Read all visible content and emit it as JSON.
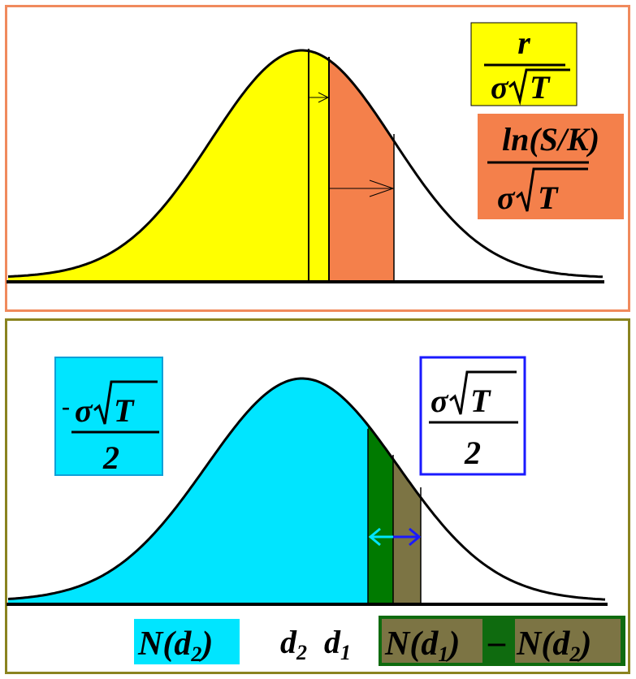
{
  "colors": {
    "top_border": "#f08a5d",
    "bottom_border": "#8a8420",
    "yellow_area": "#ffff00",
    "orange_area": "#f4804b",
    "cyan_area": "#00e5ff",
    "green_area": "#007a00",
    "olive_area": "#7c7444",
    "top_yellow_label_bg": "#ffff00",
    "top_orange_label_bg": "#f4804b",
    "bottom_left_label_bg": "#00e5ff",
    "bottom_right_label_border": "#1a1aff",
    "cyan_arrow": "#00e5ff",
    "blue_arrow": "#1a1aff",
    "bottom_right_formula_bg": "#0f6b0f"
  },
  "top_panel": {
    "label_yellow": {
      "numerator": "r",
      "denominator_prefix": "σ",
      "denominator_radicand": "T"
    },
    "label_orange": {
      "numerator": "ln(S/K)",
      "denominator_prefix": "σ",
      "denominator_radicand": "T"
    }
  },
  "bottom_panel": {
    "label_left": {
      "sign": "-",
      "numerator_prefix": "σ",
      "numerator_radicand": "T",
      "denominator": "2"
    },
    "label_right": {
      "numerator_prefix": "σ",
      "numerator_radicand": "T",
      "denominator": "2"
    },
    "bottom_labels": {
      "n_d2": {
        "func": "N(d",
        "sub": "2",
        "close": ")"
      },
      "d2": {
        "var": "d",
        "sub": "2"
      },
      "d1": {
        "var": "d",
        "sub": "1"
      },
      "difference": {
        "left_func": "N(d",
        "left_sub": "1",
        "left_close": ")",
        "operator": "–",
        "right_func": "N(d",
        "right_sub": "2",
        "right_close": ")"
      }
    }
  }
}
